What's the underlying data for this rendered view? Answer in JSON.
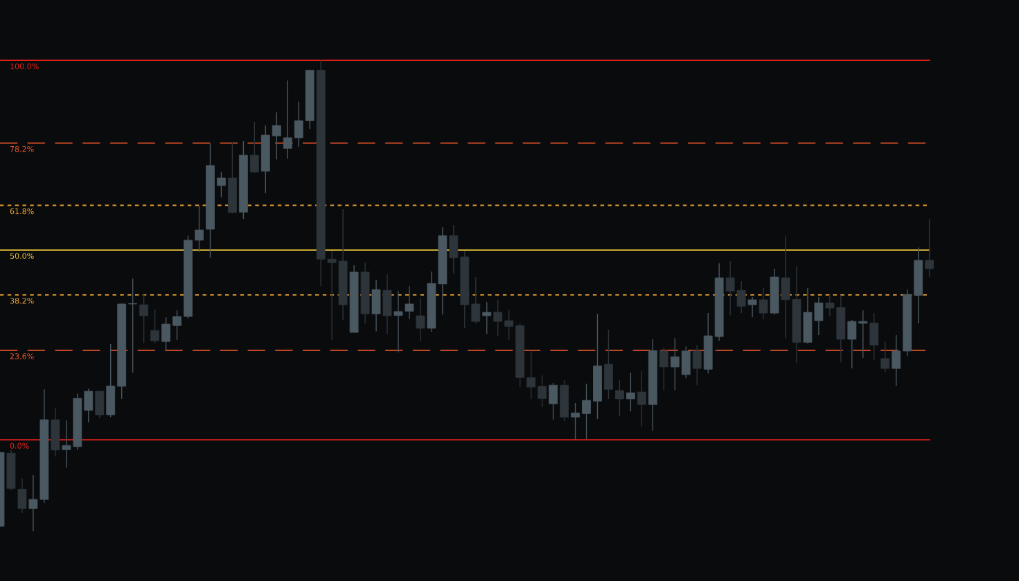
{
  "chart_data": {
    "type": "candlestick",
    "categories": [
      null,
      null,
      null,
      null,
      null,
      null,
      null,
      null,
      null,
      null,
      null,
      null,
      null,
      null,
      null,
      null,
      null,
      null,
      null,
      null,
      null,
      null,
      null,
      null,
      null,
      null,
      null,
      null,
      null,
      null,
      null,
      null,
      null,
      null,
      null,
      null,
      null,
      null,
      null,
      null,
      null,
      null,
      null,
      null,
      null,
      null,
      null,
      null,
      null,
      null,
      null,
      null,
      null,
      null,
      null,
      null,
      null,
      null,
      null,
      null,
      null,
      null,
      null,
      null,
      null,
      null,
      null,
      null,
      null,
      null,
      null,
      null,
      null,
      null,
      null,
      null,
      null,
      null,
      null,
      null,
      null,
      null,
      null,
      null,
      null
    ],
    "ohlc": [
      [
        -22.8,
        -3.3,
        -22.8,
        -3.3
      ],
      [
        -3.5,
        -2.7,
        -13.3,
        -12.8
      ],
      [
        -13.0,
        -10.2,
        -19.3,
        -18.1
      ],
      [
        -18.1,
        -9.3,
        -24.1,
        -15.7
      ],
      [
        -15.7,
        13.3,
        -16.6,
        5.3
      ],
      [
        5.3,
        8.4,
        -4.4,
        -2.7
      ],
      [
        -2.6,
        5.1,
        -7.3,
        -1.5
      ],
      [
        -1.8,
        12.2,
        -2.6,
        10.9
      ],
      [
        7.8,
        13.5,
        4.6,
        12.8
      ],
      [
        12.8,
        12.8,
        5.7,
        6.6
      ],
      [
        6.6,
        25.2,
        6.0,
        14.2
      ],
      [
        14.1,
        35.9,
        10.8,
        35.8
      ],
      [
        35.8,
        42.5,
        17.7,
        35.9
      ],
      [
        35.6,
        38.5,
        25.5,
        32.7
      ],
      [
        28.8,
        34.5,
        25.5,
        26.1
      ],
      [
        25.9,
        32.3,
        23.7,
        30.5
      ],
      [
        30.1,
        34.1,
        26.3,
        32.5
      ],
      [
        32.5,
        53.8,
        31.9,
        52.6
      ],
      [
        52.6,
        61.7,
        49.5,
        55.3
      ],
      [
        55.5,
        78.1,
        48.0,
        72.3
      ],
      [
        67.0,
        70.6,
        63.9,
        69.0
      ],
      [
        69.0,
        78.3,
        59.7,
        59.9
      ],
      [
        60.0,
        78.7,
        58.2,
        75.0
      ],
      [
        75.0,
        83.8,
        70.3,
        70.6
      ],
      [
        70.8,
        82.8,
        65.0,
        80.3
      ],
      [
        80.1,
        86.3,
        73.9,
        82.8
      ],
      [
        76.8,
        94.7,
        74.1,
        79.6
      ],
      [
        79.6,
        89.1,
        77.2,
        84.1
      ],
      [
        84.1,
        97.4,
        81.9,
        97.4
      ],
      [
        97.4,
        100.0,
        40.5,
        47.6
      ],
      [
        47.6,
        49.8,
        26.3,
        46.7
      ],
      [
        47.1,
        60.8,
        31.6,
        35.6
      ],
      [
        28.3,
        46.0,
        28.3,
        44.2
      ],
      [
        44.2,
        46.7,
        30.7,
        33.2
      ],
      [
        33.2,
        42.2,
        28.6,
        39.6
      ],
      [
        39.4,
        43.6,
        27.9,
        32.7
      ],
      [
        32.8,
        39.2,
        23.0,
        33.8
      ],
      [
        33.9,
        40.5,
        31.8,
        35.8
      ],
      [
        32.7,
        37.4,
        26.1,
        29.4
      ],
      [
        29.4,
        44.3,
        28.5,
        41.2
      ],
      [
        41.1,
        56.0,
        33.0,
        53.8
      ],
      [
        53.8,
        56.6,
        43.8,
        48.0
      ],
      [
        48.2,
        49.8,
        29.4,
        35.6
      ],
      [
        35.8,
        42.9,
        30.7,
        31.2
      ],
      [
        32.7,
        36.3,
        27.9,
        33.6
      ],
      [
        33.6,
        37.0,
        27.4,
        31.2
      ],
      [
        31.4,
        34.3,
        26.3,
        29.9
      ],
      [
        30.1,
        30.7,
        13.9,
        16.4
      ],
      [
        16.4,
        23.5,
        10.8,
        13.9
      ],
      [
        14.1,
        17.0,
        8.6,
        10.9
      ],
      [
        9.5,
        15.0,
        5.3,
        14.4
      ],
      [
        14.4,
        15.7,
        4.9,
        6.0
      ],
      [
        6.0,
        9.7,
        0.0,
        7.1
      ],
      [
        6.9,
        14.8,
        0.2,
        10.4
      ],
      [
        10.2,
        33.2,
        5.5,
        19.5
      ],
      [
        19.9,
        29.0,
        10.8,
        13.3
      ],
      [
        13.0,
        15.7,
        6.2,
        10.8
      ],
      [
        10.8,
        17.7,
        7.5,
        12.4
      ],
      [
        12.6,
        18.1,
        3.5,
        9.3
      ],
      [
        9.3,
        26.5,
        2.4,
        23.5
      ],
      [
        23.5,
        24.3,
        13.1,
        19.2
      ],
      [
        19.2,
        26.8,
        13.1,
        21.9
      ],
      [
        17.2,
        24.6,
        16.2,
        23.4
      ],
      [
        23.5,
        25.0,
        14.4,
        18.8
      ],
      [
        18.6,
        33.4,
        17.5,
        27.4
      ],
      [
        27.2,
        46.5,
        26.1,
        42.7
      ],
      [
        42.7,
        47.1,
        32.8,
        39.2
      ],
      [
        39.4,
        41.8,
        33.4,
        35.2
      ],
      [
        35.6,
        37.6,
        32.3,
        36.9
      ],
      [
        36.9,
        40.1,
        31.8,
        33.4
      ],
      [
        33.4,
        45.1,
        33.0,
        42.9
      ],
      [
        42.7,
        53.6,
        26.8,
        36.9
      ],
      [
        37.0,
        45.8,
        20.3,
        25.7
      ],
      [
        25.7,
        40.0,
        25.4,
        33.6
      ],
      [
        31.4,
        37.6,
        27.6,
        36.1
      ],
      [
        36.1,
        38.5,
        32.5,
        34.7
      ],
      [
        34.9,
        38.0,
        20.4,
        26.5
      ],
      [
        26.5,
        31.6,
        18.8,
        31.2
      ],
      [
        30.7,
        34.1,
        21.5,
        31.2
      ],
      [
        30.8,
        33.4,
        21.0,
        25.0
      ],
      [
        21.4,
        25.9,
        17.9,
        18.8
      ],
      [
        18.8,
        27.6,
        14.2,
        23.4
      ],
      [
        23.4,
        39.6,
        22.1,
        38.3
      ],
      [
        38.1,
        50.7,
        30.7,
        47.3
      ],
      [
        47.3,
        58.2,
        42.9,
        45.1
      ]
    ],
    "colors": [
      "#4a5861",
      "#2d353b",
      "#2d353b",
      "#4a5861",
      "#4a5861",
      "#2d353b",
      "#4a5861",
      "#4a5861",
      "#4a5861",
      "#2d353b",
      "#4a5861",
      "#4a5861",
      "#4a5861",
      "#2d353b",
      "#2d353b",
      "#4a5861",
      "#4a5861",
      "#4a5861",
      "#4a5861",
      "#4a5861",
      "#4a5861",
      "#2d353b",
      "#4a5861",
      "#2d353b",
      "#4a5861",
      "#4a5861",
      "#4a5861",
      "#4a5861",
      "#4a5861",
      "#2d353b",
      "#2d353b",
      "#2d353b",
      "#4a5861",
      "#2d353b",
      "#4a5861",
      "#2d353b",
      "#4a5861",
      "#4a5861",
      "#2d353b",
      "#4a5861",
      "#4a5861",
      "#2d353b",
      "#2d353b",
      "#2d353b",
      "#4a5861",
      "#2d353b",
      "#2d353b",
      "#2d353b",
      "#2d353b",
      "#2d353b",
      "#4a5861",
      "#2d353b",
      "#4a5861",
      "#4a5861",
      "#4a5861",
      "#2d353b",
      "#2d353b",
      "#4a5861",
      "#2d353b",
      "#4a5861",
      "#2d353b",
      "#4a5861",
      "#4a5861",
      "#2d353b",
      "#4a5861",
      "#4a5861",
      "#2d353b",
      "#2d353b",
      "#4a5861",
      "#2d353b",
      "#4a5861",
      "#2d353b",
      "#2d353b",
      "#4a5861",
      "#4a5861",
      "#2d353b",
      "#2d353b",
      "#4a5861",
      "#4a5861",
      "#2d353b",
      "#2d353b",
      "#4a5861",
      "#4a5861",
      "#4a5861",
      "#2d353b"
    ],
    "ylim": [
      -37.2,
      115.9
    ],
    "ref_lines": [
      {
        "axis": "y",
        "value": 100,
        "label": "100.0%",
        "color": "#e3211b",
        "line_style": "solid"
      },
      {
        "axis": "y",
        "value": 78.2,
        "label": "78.2%",
        "color": "#e0522a",
        "line_style": "dashed"
      },
      {
        "axis": "y",
        "value": 61.8,
        "label": "61.8%",
        "color": "#e6a032",
        "line_style": "dotted"
      },
      {
        "axis": "y",
        "value": 50,
        "label": "50.0%",
        "color": "#e6c23c",
        "line_style": "solid"
      },
      {
        "axis": "y",
        "value": 38.2,
        "label": "38.2%",
        "color": "#e6a032",
        "line_style": "dotted"
      },
      {
        "axis": "y",
        "value": 23.6,
        "label": "23.6%",
        "color": "#e0522a",
        "line_style": "dashed"
      },
      {
        "axis": "y",
        "value": 0,
        "label": "0.0%",
        "color": "#e3211b",
        "line_style": "solid"
      }
    ]
  }
}
